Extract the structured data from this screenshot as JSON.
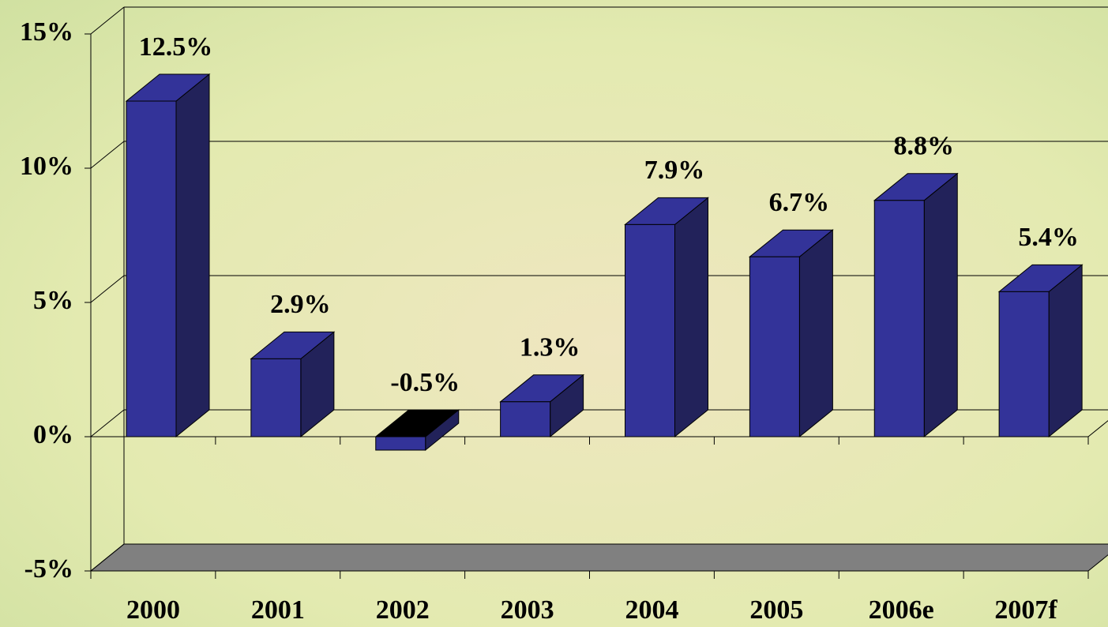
{
  "chart_data": {
    "type": "bar3d",
    "categories": [
      "2000",
      "2001",
      "2002",
      "2003",
      "2004",
      "2005",
      "2006e",
      "2007f"
    ],
    "values": [
      12.5,
      2.9,
      -0.5,
      1.3,
      7.9,
      6.7,
      8.8,
      5.4
    ],
    "value_labels": [
      "12.5%",
      "2.9%",
      "-0.5%",
      "1.3%",
      "7.9%",
      "6.7%",
      "8.8%",
      "5.4%"
    ],
    "color": "#333399",
    "ylim": [
      -5,
      15
    ],
    "yticks": [
      {
        "value": -5,
        "label": "-5%"
      },
      {
        "value": 0,
        "label": "0%"
      },
      {
        "value": 5,
        "label": "5%"
      },
      {
        "value": 10,
        "label": "10%"
      },
      {
        "value": 15,
        "label": "15%"
      }
    ],
    "grid": true
  }
}
